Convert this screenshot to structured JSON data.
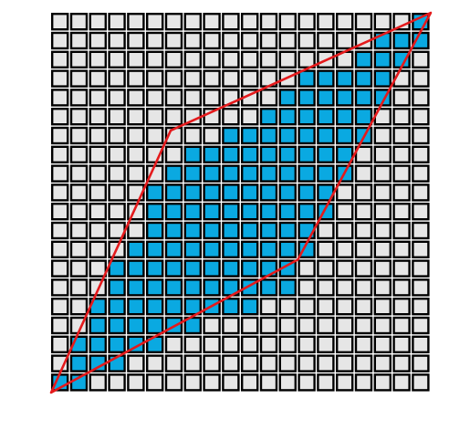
{
  "grid": {
    "rows": 20,
    "cols": 20,
    "highlighted": {
      "0": [
        19
      ],
      "1": [
        17,
        18,
        19
      ],
      "2": [
        16,
        17,
        18
      ],
      "3": [
        13,
        14,
        15,
        16,
        17
      ],
      "4": [
        12,
        13,
        14,
        15,
        16,
        17
      ],
      "5": [
        11,
        12,
        13,
        14,
        15,
        16
      ],
      "6": [
        9,
        10,
        11,
        12,
        13,
        14,
        15,
        16
      ],
      "7": [
        7,
        8,
        9,
        10,
        11,
        12,
        13,
        14,
        15
      ],
      "8": [
        6,
        7,
        8,
        9,
        10,
        11,
        12,
        13,
        14,
        15
      ],
      "9": [
        5,
        6,
        7,
        8,
        9,
        10,
        11,
        12,
        13,
        14
      ],
      "10": [
        5,
        6,
        7,
        8,
        9,
        10,
        11,
        12,
        13,
        14
      ],
      "11": [
        5,
        6,
        7,
        8,
        9,
        10,
        11,
        12,
        13
      ],
      "12": [
        4,
        5,
        6,
        7,
        8,
        9,
        10,
        11,
        12,
        13
      ],
      "13": [
        3,
        4,
        5,
        6,
        7,
        8,
        9,
        10,
        11,
        12
      ],
      "14": [
        3,
        4,
        5,
        6,
        7,
        8,
        9,
        10,
        11,
        12
      ],
      "15": [
        2,
        3,
        4,
        5,
        6,
        7,
        8,
        9,
        10
      ],
      "16": [
        2,
        3,
        4,
        5,
        6,
        7
      ],
      "17": [
        1,
        2,
        3,
        4,
        5
      ],
      "18": [
        1,
        2,
        3
      ],
      "19": [
        0,
        1
      ]
    }
  },
  "polygon": {
    "vertices": [
      [
        0,
        0
      ],
      [
        6.3,
        13.8
      ],
      [
        20,
        20
      ],
      [
        13,
        7
      ]
    ]
  },
  "colors": {
    "background": "#ffffff",
    "cell_fill": "#e6e6e6",
    "cell_highlight": "#0aa9e1",
    "cell_border": "#000000",
    "polygon_stroke": "#e41a1c"
  }
}
